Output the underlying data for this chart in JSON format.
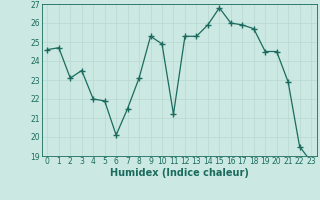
{
  "x": [
    0,
    1,
    2,
    3,
    4,
    5,
    6,
    7,
    8,
    9,
    10,
    11,
    12,
    13,
    14,
    15,
    16,
    17,
    18,
    19,
    20,
    21,
    22,
    23
  ],
  "y": [
    24.6,
    24.7,
    23.1,
    23.5,
    22.0,
    21.9,
    20.1,
    21.5,
    23.1,
    25.3,
    24.9,
    21.2,
    25.3,
    25.3,
    25.9,
    26.8,
    26.0,
    25.9,
    25.7,
    24.5,
    24.5,
    22.9,
    19.5,
    18.7
  ],
  "line_color": "#1a6b5e",
  "marker_color": "#1a6b5e",
  "bg_color": "#cce8e2",
  "grid_color": "#b8d8d2",
  "xlabel": "Humidex (Indice chaleur)",
  "ylim": [
    19,
    27
  ],
  "xlim_left": -0.5,
  "xlim_right": 23.5,
  "yticks": [
    19,
    20,
    21,
    22,
    23,
    24,
    25,
    26,
    27
  ],
  "xticks": [
    0,
    1,
    2,
    3,
    4,
    5,
    6,
    7,
    8,
    9,
    10,
    11,
    12,
    13,
    14,
    15,
    16,
    17,
    18,
    19,
    20,
    21,
    22,
    23
  ],
  "tick_fontsize": 5.5,
  "xlabel_fontsize": 7.0,
  "marker_size": 2.0,
  "line_width": 0.9
}
